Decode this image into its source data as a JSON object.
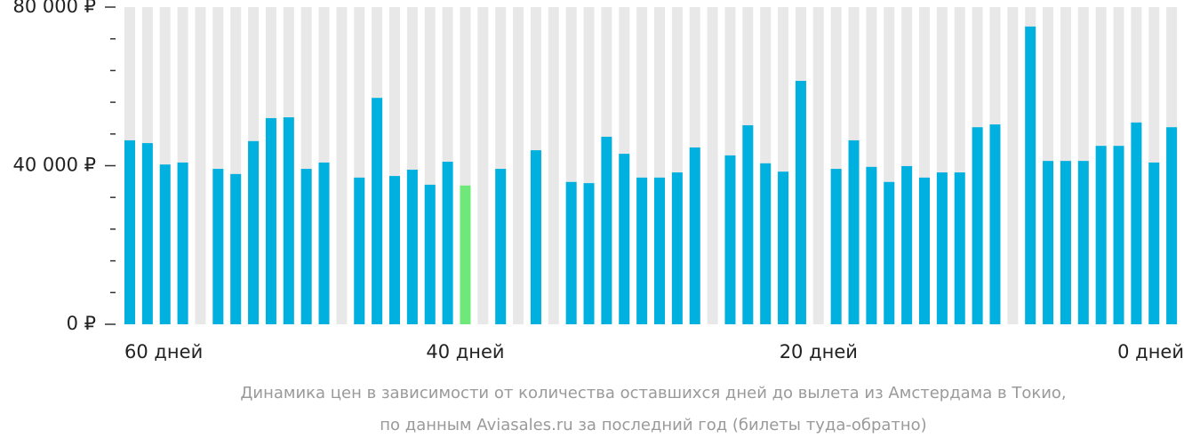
{
  "chart_data": {
    "type": "bar",
    "categories": [
      "60 дней",
      null,
      null,
      null,
      null,
      null,
      null,
      null,
      null,
      null,
      null,
      null,
      null,
      null,
      null,
      null,
      null,
      null,
      null,
      "40 дней",
      null,
      null,
      null,
      null,
      null,
      null,
      null,
      null,
      null,
      null,
      null,
      null,
      null,
      null,
      null,
      null,
      null,
      null,
      null,
      "20 дней",
      null,
      null,
      null,
      null,
      null,
      null,
      null,
      null,
      null,
      null,
      null,
      null,
      null,
      null,
      null,
      null,
      null,
      null,
      null,
      "0 дней"
    ],
    "values": [
      46400,
      45700,
      40300,
      40800,
      null,
      39200,
      37900,
      46200,
      52000,
      52200,
      39200,
      40800,
      null,
      37000,
      57100,
      37400,
      39000,
      35200,
      41000,
      35000,
      null,
      39200,
      null,
      43900,
      null,
      35900,
      35600,
      47300,
      43000,
      37000,
      37000,
      38300,
      44600,
      null,
      42600,
      50200,
      40600,
      38500,
      61400,
      null,
      39200,
      46400,
      39700,
      35900,
      39900,
      37000,
      38300,
      38300,
      49700,
      50400,
      null,
      75100,
      41200,
      41200,
      41200,
      45000,
      45000,
      50900,
      40800,
      49700
    ],
    "color": "#00b0de",
    "highlight_index": 19,
    "highlight_color": "#6ee878",
    "ylim": [
      0,
      80000
    ],
    "yticks": [
      {
        "value": 0,
        "label": "0 ₽"
      },
      {
        "value": 40000,
        "label": "40 000 ₽"
      },
      {
        "value": 80000,
        "label": "80 000 ₽"
      }
    ],
    "yticks_minor": [
      8000,
      16000,
      24000,
      32000,
      48000,
      56000,
      64000,
      72000
    ],
    "caption": [
      "Динамика цен в зависимости от количества оставшихся дней до вылета из Амстердама в Токио,",
      "по данным Aviasales.ru за последний год (билеты туда-обратно)"
    ]
  }
}
